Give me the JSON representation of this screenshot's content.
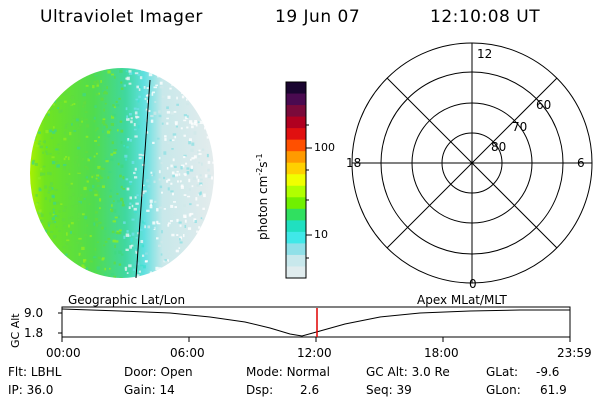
{
  "header": {
    "instrument": "Ultraviolet Imager",
    "date": "19 Jun 07",
    "time": "12:10:08 UT"
  },
  "colorbar": {
    "unit_label": "photon cm",
    "unit_exp1": "-2",
    "unit_s": "s",
    "unit_exp2": "-1",
    "ticks": [
      "100",
      "10"
    ],
    "colors": [
      "#1a0530",
      "#4a0a50",
      "#7a0a3a",
      "#b00020",
      "#e01010",
      "#ff5000",
      "#ff9a00",
      "#ffd000",
      "#f0ff00",
      "#b0ff00",
      "#70f000",
      "#30e060",
      "#20e0c0",
      "#40e8e8",
      "#90e0e8",
      "#c8e8ec",
      "#e0ecee"
    ]
  },
  "polar": {
    "mlt_labels": {
      "top": "12",
      "left": "18",
      "right": "6",
      "bottom": "0"
    },
    "lat_labels": [
      "60",
      "70",
      "80"
    ]
  },
  "timeline": {
    "left_label": "Geographic Lat/Lon",
    "right_label": "Apex MLat/MLT",
    "axis_label": "GC Alt",
    "y_ticks": [
      "9.0",
      "1.8"
    ],
    "x_ticks": [
      "00:00",
      "06:00",
      "12:00",
      "18:00",
      "23:59"
    ],
    "marker_time": "12:10"
  },
  "footer": {
    "row1": [
      {
        "label": "Flt:",
        "value": "LBHL"
      },
      {
        "label": "Door:",
        "value": "Open"
      },
      {
        "label": "Mode:",
        "value": "Normal"
      },
      {
        "label": "GC Alt:",
        "value": "3.0 Re"
      },
      {
        "label": "GLat:",
        "value": "-9.6"
      }
    ],
    "row2": [
      {
        "label": "IP:",
        "value": "36.0"
      },
      {
        "label": "Gain:",
        "value": "14"
      },
      {
        "label": "Dsp:",
        "value": "2.6"
      },
      {
        "label": "Seq:",
        "value": "39"
      },
      {
        "label": "GLon:",
        "value": "61.9"
      }
    ]
  },
  "colors": {
    "terminator": "#000000",
    "marker": "#e00000",
    "grid": "#000000"
  }
}
